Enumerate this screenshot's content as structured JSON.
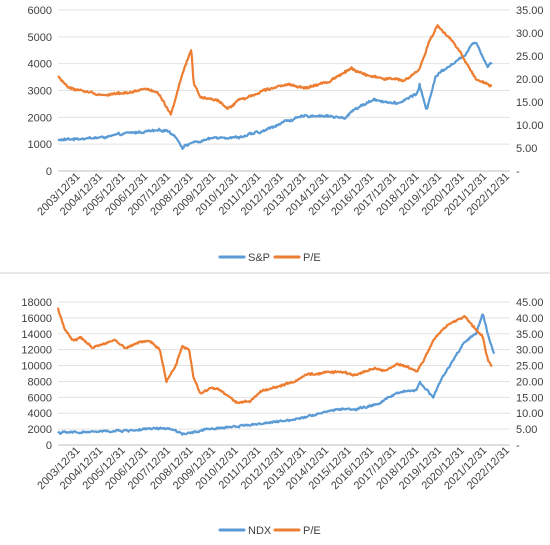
{
  "colors": {
    "primary": "#5B9BD5",
    "pe": "#ED7D31",
    "grid": "#e3e3e3",
    "axis": "#bfbfbf",
    "separator": "#d0d0d0"
  },
  "chart_data": [
    {
      "type": "line",
      "grid": true,
      "legend_position": "bottom",
      "x_categories": [
        "2003/12/31",
        "2004/12/31",
        "2005/12/31",
        "2006/12/31",
        "2007/12/31",
        "2008/12/31",
        "2009/12/31",
        "2010/12/31",
        "2011/12/31",
        "2012/12/31",
        "2013/12/31",
        "2014/12/31",
        "2015/12/31",
        "2016/12/31",
        "2017/12/31",
        "2018/12/31",
        "2019/12/31",
        "2020/12/31",
        "2021/12/31",
        "2022/12/31"
      ],
      "y_left": {
        "ticks": [
          "0",
          "1000",
          "2000",
          "3000",
          "4000",
          "5000",
          "6000"
        ],
        "ylim": [
          0,
          6000
        ]
      },
      "y_right": {
        "ticks": [
          "-",
          "5.00",
          "10.00",
          "15.00",
          "20.00",
          "25.00",
          "30.00",
          "35.00"
        ],
        "ylim": [
          0,
          35
        ]
      },
      "series": [
        {
          "name": "S&P",
          "axis": "left",
          "x": [
            2003.0,
            2004.0,
            2005.0,
            2006.0,
            2007.0,
            2007.8,
            2008.2,
            2008.5,
            2008.9,
            2009.3,
            2010.0,
            2011.0,
            2011.8,
            2012.0,
            2013.0,
            2014.0,
            2015.0,
            2015.7,
            2016.0,
            2017.0,
            2018.0,
            2018.9,
            2019.0,
            2019.3,
            2019.7,
            2020.0,
            2021.0,
            2021.3,
            2021.5,
            2022.0,
            2022.2
          ],
          "y": [
            1150,
            1210,
            1250,
            1400,
            1480,
            1520,
            1300,
            880,
            1050,
            1100,
            1260,
            1250,
            1430,
            1450,
            1840,
            2060,
            2050,
            1950,
            2250,
            2670,
            2500,
            2900,
            3220,
            2250,
            3500,
            3750,
            4300,
            4750,
            4800,
            3900,
            4050
          ]
        },
        {
          "name": "P/E",
          "axis": "right",
          "x": [
            2003.0,
            2003.5,
            2004.0,
            2005.0,
            2006.0,
            2007.0,
            2007.5,
            2008.0,
            2008.3,
            2008.5,
            2008.9,
            2009.0,
            2009.3,
            2009.8,
            2010.0,
            2010.5,
            2011.0,
            2011.7,
            2012.0,
            2013.0,
            2014.0,
            2015.0,
            2016.0,
            2016.5,
            2017.0,
            2017.5,
            2018.0,
            2018.3,
            2019.0,
            2019.4,
            2019.8,
            2020.0,
            2020.3,
            2020.8,
            2021.0,
            2021.5,
            2022.0,
            2022.2
          ],
          "y": [
            20.5,
            18.0,
            17.5,
            16.5,
            17.0,
            18.0,
            16.5,
            12.0,
            17.5,
            21.0,
            26.5,
            19.0,
            16.0,
            15.5,
            15.5,
            13.5,
            15.5,
            16.5,
            17.5,
            18.8,
            18.0,
            19.5,
            22.5,
            21.0,
            20.5,
            20.0,
            20.0,
            19.5,
            22.0,
            28.0,
            31.5,
            30.5,
            29.0,
            26.0,
            24.0,
            20.0,
            19.0,
            18.5
          ]
        }
      ]
    },
    {
      "type": "line",
      "grid": true,
      "legend_position": "bottom",
      "x_categories": [
        "2003/12/31",
        "2004/12/31",
        "2005/12/31",
        "2006/12/31",
        "2007/12/31",
        "2008/12/31",
        "2009/12/31",
        "2010/12/31",
        "2011/12/31",
        "2012/12/31",
        "2013/12/31",
        "2014/12/31",
        "2015/12/31",
        "2016/12/31",
        "2017/12/31",
        "2018/12/31",
        "2019/12/31",
        "2020/12/31",
        "2021/12/31",
        "2022/12/31"
      ],
      "y_left": {
        "ticks": [
          "0",
          "2000",
          "4000",
          "6000",
          "8000",
          "10000",
          "12000",
          "14000",
          "16000",
          "18000"
        ],
        "ylim": [
          0,
          18000
        ]
      },
      "y_right": {
        "ticks": [
          "-",
          "5.00",
          "10.00",
          "15.00",
          "20.00",
          "25.00",
          "30.00",
          "35.00",
          "40.00",
          "45.00"
        ],
        "ylim": [
          0,
          45
        ]
      },
      "series": [
        {
          "name": "NDX",
          "axis": "left",
          "x": [
            2003.0,
            2004.0,
            2005.0,
            2006.0,
            2007.0,
            2007.8,
            2008.2,
            2008.5,
            2008.9,
            2009.5,
            2010.0,
            2011.0,
            2012.0,
            2013.0,
            2014.0,
            2015.0,
            2015.8,
            2016.0,
            2017.0,
            2018.0,
            2018.9,
            2019.0,
            2019.6,
            2020.0,
            2020.3,
            2021.0,
            2021.5,
            2021.8,
            2022.0,
            2022.3
          ],
          "y": [
            1550,
            1600,
            1700,
            1800,
            2000,
            2100,
            1800,
            1400,
            1500,
            1900,
            2100,
            2400,
            2700,
            3000,
            3600,
            4300,
            4600,
            4400,
            5000,
            6500,
            7000,
            8000,
            6000,
            8500,
            9800,
            13000,
            14000,
            16500,
            14000,
            11500
          ]
        },
        {
          "name": "P/E",
          "axis": "right",
          "x": [
            2003.0,
            2003.3,
            2003.7,
            2004.0,
            2004.5,
            2005.0,
            2005.5,
            2006.0,
            2006.5,
            2007.0,
            2007.5,
            2007.8,
            2008.2,
            2008.5,
            2008.8,
            2009.0,
            2009.3,
            2009.7,
            2010.0,
            2010.5,
            2011.0,
            2011.5,
            2012.0,
            2013.0,
            2013.5,
            2014.0,
            2015.0,
            2015.5,
            2016.0,
            2017.0,
            2017.5,
            2018.0,
            2018.5,
            2018.9,
            2019.2,
            2019.6,
            2020.0,
            2020.3,
            2020.8,
            2021.0,
            2021.4,
            2021.8,
            2022.0,
            2022.2
          ],
          "y": [
            43.0,
            36.5,
            32.5,
            34.0,
            30.5,
            32.0,
            33.0,
            30.5,
            32.0,
            33.0,
            30.0,
            20.0,
            25.0,
            31.0,
            30.0,
            21.0,
            16.0,
            18.0,
            18.0,
            15.5,
            13.0,
            14.0,
            17.0,
            19.0,
            20.0,
            22.0,
            23.0,
            23.0,
            22.0,
            24.0,
            23.5,
            25.5,
            24.5,
            23.0,
            27.0,
            33.0,
            36.0,
            38.0,
            40.0,
            40.5,
            37.0,
            34.0,
            27.0,
            24.5
          ]
        }
      ]
    }
  ]
}
